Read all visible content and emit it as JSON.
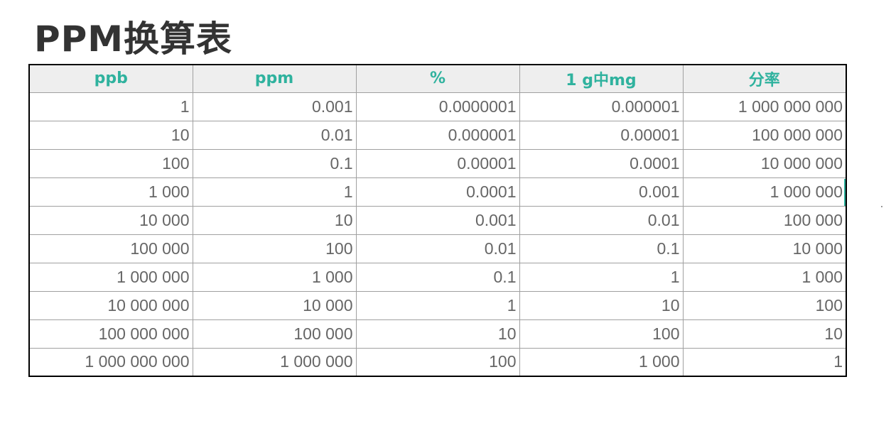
{
  "title": "PPM换算表",
  "table": {
    "headers": [
      "ppb",
      "ppm",
      "%",
      "1 g中mg",
      "分率"
    ],
    "rows": [
      [
        "1",
        "0.001",
        "0.0000001",
        "0.000001",
        "1 000 000 000"
      ],
      [
        "10",
        "0.01",
        "0.000001",
        "0.00001",
        "100 000 000"
      ],
      [
        "100",
        "0.1",
        "0.00001",
        "0.0001",
        "10 000 000"
      ],
      [
        "1 000",
        "1",
        "0.0001",
        "0.001",
        "1 000 000"
      ],
      [
        "10 000",
        "10",
        "0.001",
        "0.01",
        "100 000"
      ],
      [
        "100 000",
        "100",
        "0.01",
        "0.1",
        "10 000"
      ],
      [
        "1 000 000",
        "1 000",
        "0.1",
        "1",
        "1 000"
      ],
      [
        "10 000 000",
        "10 000",
        "1",
        "10",
        "100"
      ],
      [
        "100 000 000",
        "100 000",
        "10",
        "100",
        "10"
      ],
      [
        "1 000 000 000",
        "1 000 000",
        "100",
        "1 000",
        "1"
      ]
    ]
  },
  "colors": {
    "header_text": "#2fb29e",
    "header_bg": "#eeeeee",
    "cell_text": "#666666",
    "title_text": "#333333"
  }
}
